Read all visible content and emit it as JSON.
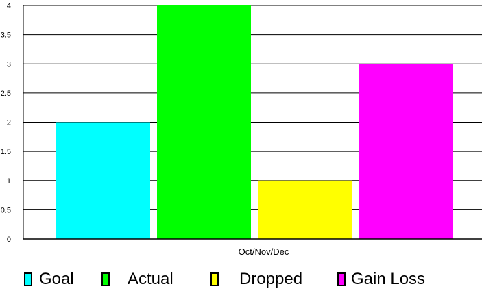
{
  "chart_data": {
    "type": "bar",
    "categories": [
      "Oct/Nov/Dec"
    ],
    "series": [
      {
        "name": "Goal",
        "values": [
          2
        ],
        "color": "#00ffff"
      },
      {
        "name": "Actual",
        "values": [
          4
        ],
        "color": "#00ff00"
      },
      {
        "name": "Dropped",
        "values": [
          1
        ],
        "color": "#ffff00"
      },
      {
        "name": "Gain Loss",
        "values": [
          3
        ],
        "color": "#ff00ff"
      }
    ],
    "title": "",
    "xlabel": "",
    "ylabel": "",
    "ylim": [
      0,
      4
    ],
    "yticks": [
      "0",
      "0.5",
      "1",
      "1.5",
      "2",
      "2.5",
      "3",
      "3.5",
      "4"
    ],
    "grid": true,
    "legend_position": "bottom"
  }
}
